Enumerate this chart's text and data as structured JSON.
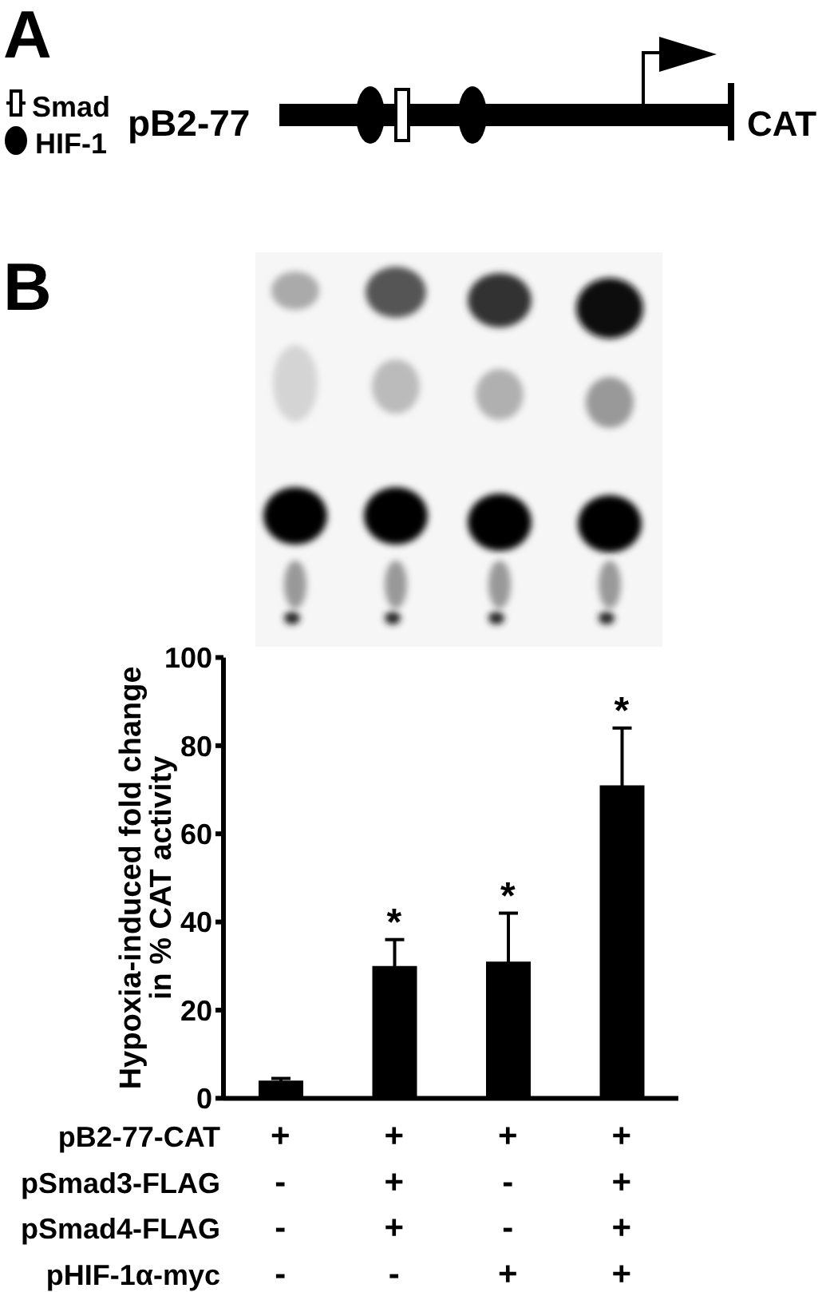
{
  "chart_data": {
    "type": "bar",
    "categories": [
      "+\n-\n-\n-",
      "+\n+\n+\n-",
      "+\n-\n-\n+",
      "+\n+\n+\n+"
    ],
    "values": [
      4,
      30,
      31,
      71
    ],
    "errors": [
      0.5,
      6,
      11,
      13
    ],
    "color": "#000000",
    "ylabel": "Hypoxia-induced fold change\nin % CAT activity",
    "ylim": [
      0,
      100
    ],
    "yticks": [
      0,
      20,
      40,
      60,
      80,
      100
    ],
    "annotations": [
      "A",
      "Smad",
      "HIF-1",
      "pB2-77",
      "CAT",
      "B",
      "pB2-77-CAT",
      "pSmad3-FLAG",
      "pSmad4-FLAG",
      "pHIF-1α-myc",
      "*",
      "*",
      "*"
    ]
  }
}
